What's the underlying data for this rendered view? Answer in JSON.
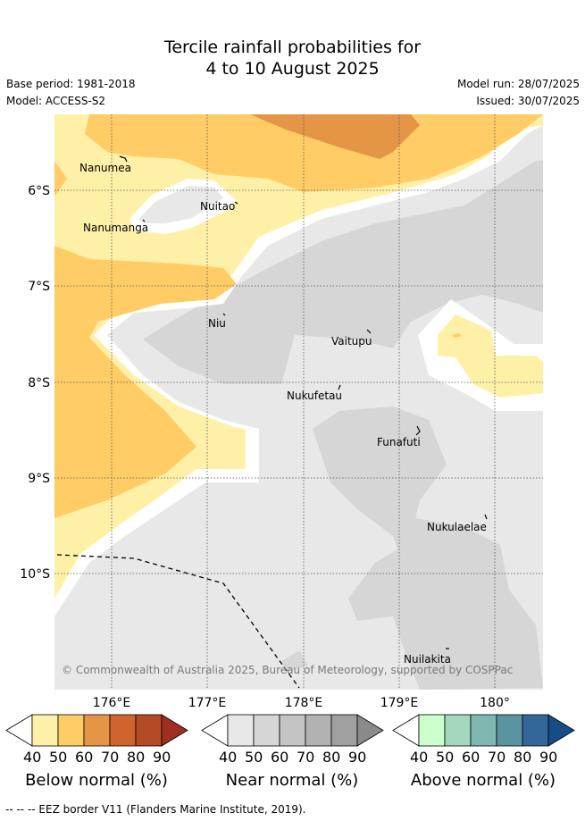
{
  "title_line1": "Tercile rainfall probabilities for",
  "title_line2": "4 to 10 August 2025",
  "base_period": "Base period: 1981-2018",
  "model": "Model: ACCESS-S2",
  "model_run": "Model run: 28/07/2025",
  "issued": "Issued: 30/07/2025",
  "places": {
    "nanumea": "Nanumea",
    "nuitao": "Nuitao",
    "nanumanga": "Nanumanga",
    "niu": "Niu",
    "vaitupu": "Vaitupu",
    "nukufetau": "Nukufetau",
    "funafuti": "Funafuti",
    "nukulaelae": "Nukulaelae",
    "nuilakita": "Nuilakita"
  },
  "latitudes": [
    "6°S",
    "7°S",
    "8°S",
    "9°S",
    "10°S"
  ],
  "longitudes": [
    "176°E",
    "177°E",
    "178°E",
    "179°E",
    "180°"
  ],
  "copyright": "© Commonwealth of Australia 2025, Bureau of Meteorology, supported by COSPPac",
  "colorbars": {
    "ticks": [
      "40",
      "50",
      "60",
      "70",
      "80",
      "90"
    ],
    "below": {
      "title": "Below normal (%)",
      "colors": [
        "#fff0a8",
        "#ffcc66",
        "#e49545",
        "#d0642e",
        "#b44a26",
        "#9e2f22"
      ]
    },
    "near": {
      "title": "Near normal (%)",
      "colors": [
        "#e8e8e8",
        "#d6d6d6",
        "#c4c4c4",
        "#b2b2b2",
        "#a0a0a0",
        "#8a8a8a"
      ]
    },
    "above": {
      "title": "Above normal (%)",
      "colors": [
        "#ccffcc",
        "#a3d8bd",
        "#7fb8b1",
        "#5a94a0",
        "#336699",
        "#174c86"
      ]
    }
  },
  "footer": "--  --  -- EEZ border V11 (Flanders Marine Institute, 2019)."
}
